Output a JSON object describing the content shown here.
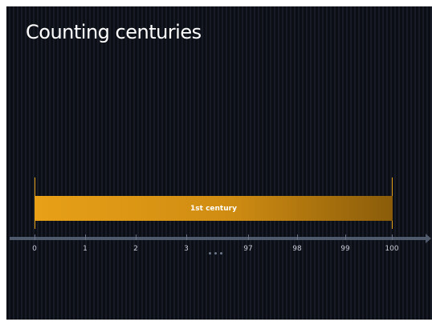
{
  "slide": {
    "title": "Counting centuries"
  },
  "timeline": {
    "span": {
      "label": "1st century",
      "start": 0,
      "end": 100,
      "color": "#e8a017"
    },
    "ticks": [
      "0",
      "1",
      "2",
      "3",
      "97",
      "98",
      "99",
      "100"
    ],
    "gap_marker": "ellipsis-dots",
    "axis_color": "#4f5a6c"
  }
}
